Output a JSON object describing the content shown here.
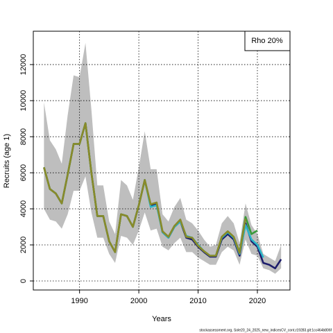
{
  "chart_data": {
    "type": "line",
    "xlabel": "Years",
    "ylabel": "Recruits (age 1)",
    "annotation": "Rho 20%",
    "footer": "stockassessment.org, Sole20_24_2025_new_indicesCV_cont,r19283.git:1cc464b806f",
    "x": [
      1984,
      1985,
      1986,
      1987,
      1988,
      1989,
      1990,
      1991,
      1992,
      1993,
      1994,
      1995,
      1996,
      1997,
      1998,
      1999,
      2000,
      2001,
      2002,
      2003,
      2004,
      2005,
      2006,
      2007,
      2008,
      2009,
      2010,
      2011,
      2012,
      2013,
      2014,
      2015,
      2016,
      2017,
      2018,
      2019,
      2020,
      2021,
      2022,
      2023,
      2024
    ],
    "band": {
      "color": "#bebebe",
      "upper": [
        9900,
        7800,
        7300,
        6500,
        9200,
        11400,
        11300,
        13200,
        9500,
        5300,
        5300,
        3300,
        2600,
        5600,
        5300,
        4500,
        6300,
        8300,
        6200,
        6200,
        3700,
        3300,
        4100,
        4600,
        3400,
        3200,
        2800,
        2300,
        1900,
        2000,
        3200,
        3600,
        3200,
        2100,
        4300,
        3100,
        2600,
        1500,
        1300,
        1100,
        2000
      ],
      "lower": [
        4000,
        3400,
        3300,
        2900,
        3700,
        5000,
        5000,
        5800,
        3800,
        2400,
        2400,
        1500,
        1000,
        2500,
        2400,
        2000,
        2800,
        3800,
        2800,
        2900,
        1900,
        1700,
        2100,
        2400,
        1600,
        1600,
        1300,
        1100,
        900,
        900,
        1600,
        1900,
        1700,
        900,
        2300,
        1500,
        1400,
        700,
        600,
        400,
        700
      ]
    },
    "series": [
      {
        "color": "#1c1c6b",
        "values": [
          6300,
          5100,
          4850,
          4300,
          5900,
          7600,
          7600,
          8750,
          6000,
          3600,
          3600,
          2200,
          1600,
          3700,
          3600,
          3000,
          4200,
          5600,
          4200,
          4300,
          2700,
          2400,
          3000,
          3300,
          2400,
          2300,
          1900,
          1600,
          1350,
          1350,
          2300,
          2600,
          2300,
          1400,
          3200,
          2200,
          1900,
          1000,
          900,
          700,
          1200
        ]
      },
      {
        "color": "#29b6c8",
        "values": [
          6300,
          5100,
          4850,
          4300,
          5900,
          7600,
          7600,
          8750,
          6000,
          3600,
          3600,
          2200,
          1600,
          3700,
          3600,
          3000,
          4200,
          5600,
          4100,
          4200,
          2700,
          2400,
          3000,
          3300,
          2500,
          2400,
          2000,
          1650,
          1400,
          1400,
          2400,
          2700,
          2400,
          1500,
          3100,
          2300,
          2000,
          1300,
          null,
          null,
          null
        ]
      },
      {
        "color": "#3a9a3a",
        "values": [
          6300,
          5100,
          4850,
          4300,
          5900,
          7600,
          7600,
          8750,
          6000,
          3600,
          3600,
          2200,
          1600,
          3700,
          3600,
          3000,
          4200,
          5600,
          4250,
          4350,
          2750,
          2450,
          3050,
          3400,
          2450,
          2400,
          1950,
          1650,
          1400,
          1400,
          2450,
          2750,
          2450,
          1600,
          3550,
          2600,
          2800,
          null,
          null,
          null,
          null
        ]
      },
      {
        "color": "#8a8a2a",
        "values": [
          6300,
          5100,
          4850,
          4300,
          5900,
          7600,
          7600,
          8750,
          6000,
          3600,
          3600,
          2200,
          1600,
          3700,
          3600,
          3000,
          4200,
          5600,
          4250,
          4350,
          2750,
          2450,
          3050,
          3400,
          2450,
          2400,
          1950,
          1650,
          1400,
          1400,
          2450,
          2750,
          2450,
          1550,
          3450,
          null,
          null,
          null,
          null,
          null,
          null
        ]
      }
    ],
    "xlim": [
      1982.2,
      2025.5
    ],
    "ylim": [
      -500,
      13850
    ],
    "xticks": [
      1990,
      2000,
      2010,
      2020
    ],
    "yticks": [
      0,
      2000,
      4000,
      6000,
      8000,
      10000,
      12000
    ],
    "grid": true
  }
}
